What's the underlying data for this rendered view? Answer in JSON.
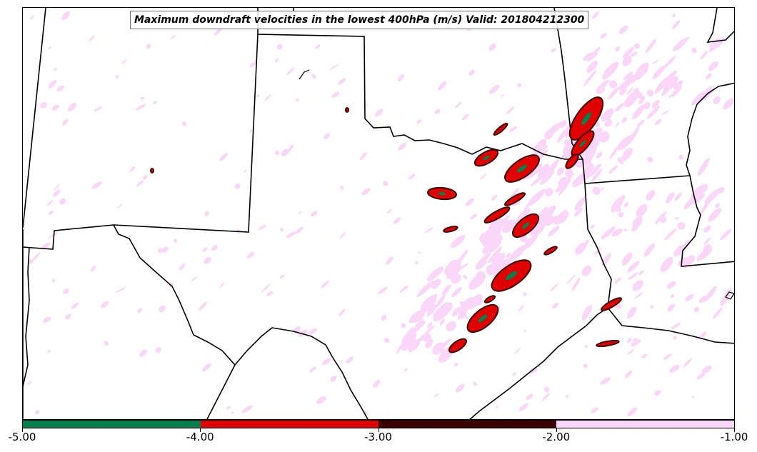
{
  "map": {
    "title": "Maximum downdraft velocities in the lowest 400hPa (m/s) Valid: 201804212300",
    "colors": {
      "background": "#ffffff",
      "boundaries": "#000000",
      "field_weak": "#fad7f8",
      "field_moderate": "#3d0000",
      "field_strong": "#e00000",
      "field_severe": "#007f4c"
    }
  },
  "colorbar": {
    "ticks": [
      "-5.00",
      "-4.00",
      "-3.00",
      "-2.00",
      "-1.00"
    ],
    "segments": [
      {
        "from": "-5.00",
        "to": "-4.00",
        "color": "#007f4c"
      },
      {
        "from": "-4.00",
        "to": "-3.00",
        "color": "#e00000"
      },
      {
        "from": "-3.00",
        "to": "-2.00",
        "color": "#3d0000"
      },
      {
        "from": "-2.00",
        "to": "-1.00",
        "color": "#fad7f8"
      }
    ]
  }
}
